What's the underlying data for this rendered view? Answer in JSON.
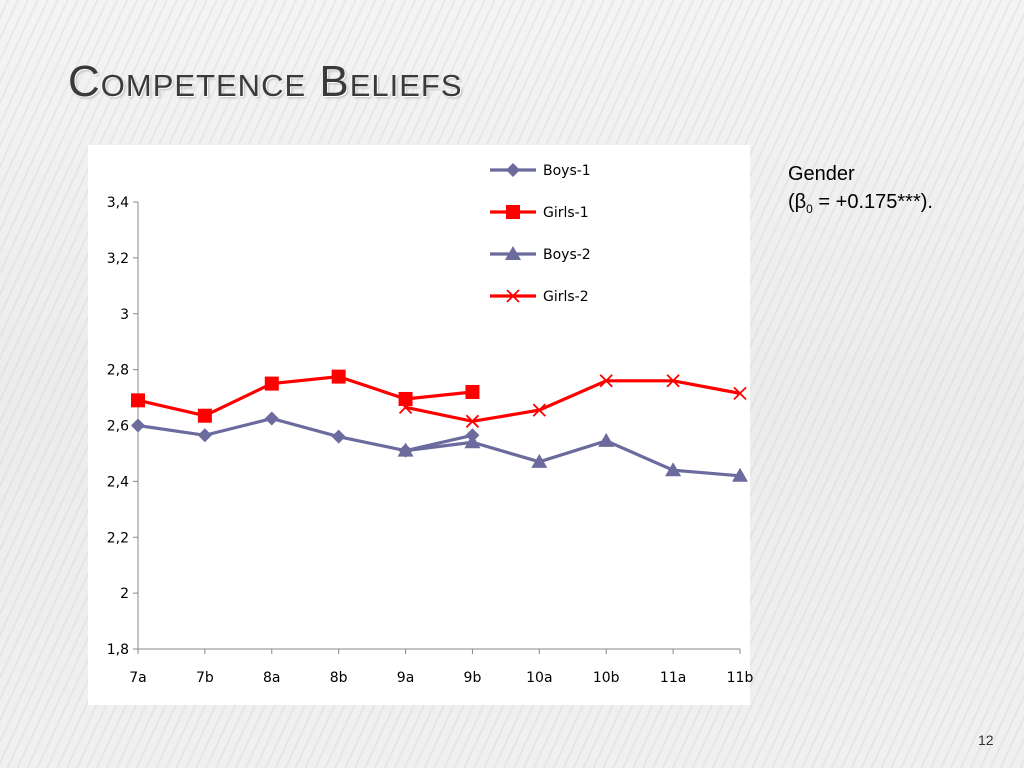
{
  "slide": {
    "title": "Competence Beliefs",
    "note_line1": "Gender",
    "note_line2_prefix": "(β",
    "note_line2_sub": "0",
    "note_line2_suffix": " = +0.175***).",
    "page_number": "12"
  },
  "chart_data": {
    "type": "line",
    "categories": [
      "7a",
      "7b",
      "8a",
      "8b",
      "9a",
      "9b",
      "10a",
      "10b",
      "11a",
      "11b"
    ],
    "ylim": [
      1.8,
      3.4
    ],
    "yticks": [
      "1,8",
      "2",
      "2,2",
      "2,4",
      "2,6",
      "2,8",
      "3",
      "3,2",
      "3,4"
    ],
    "ytick_values": [
      1.8,
      2.0,
      2.2,
      2.4,
      2.6,
      2.8,
      3.0,
      3.2,
      3.4
    ],
    "legend_position": "top-right",
    "grid": false,
    "series": [
      {
        "name": "Boys-1",
        "color": "#6b6b9e",
        "marker": "diamond",
        "values": [
          2.6,
          2.565,
          2.625,
          2.56,
          2.51,
          2.565,
          null,
          null,
          null,
          null
        ]
      },
      {
        "name": "Girls-1",
        "color": "#ff0000",
        "marker": "square",
        "values": [
          2.69,
          2.635,
          2.75,
          2.775,
          2.695,
          2.72,
          null,
          null,
          null,
          null
        ]
      },
      {
        "name": "Boys-2",
        "color": "#6b6b9e",
        "marker": "triangle",
        "values": [
          null,
          null,
          null,
          null,
          2.51,
          2.54,
          2.47,
          2.545,
          2.44,
          2.42
        ]
      },
      {
        "name": "Girls-2",
        "color": "#ff0000",
        "marker": "x",
        "values": [
          null,
          null,
          null,
          null,
          2.665,
          2.615,
          2.655,
          2.76,
          2.76,
          2.715
        ]
      }
    ]
  }
}
